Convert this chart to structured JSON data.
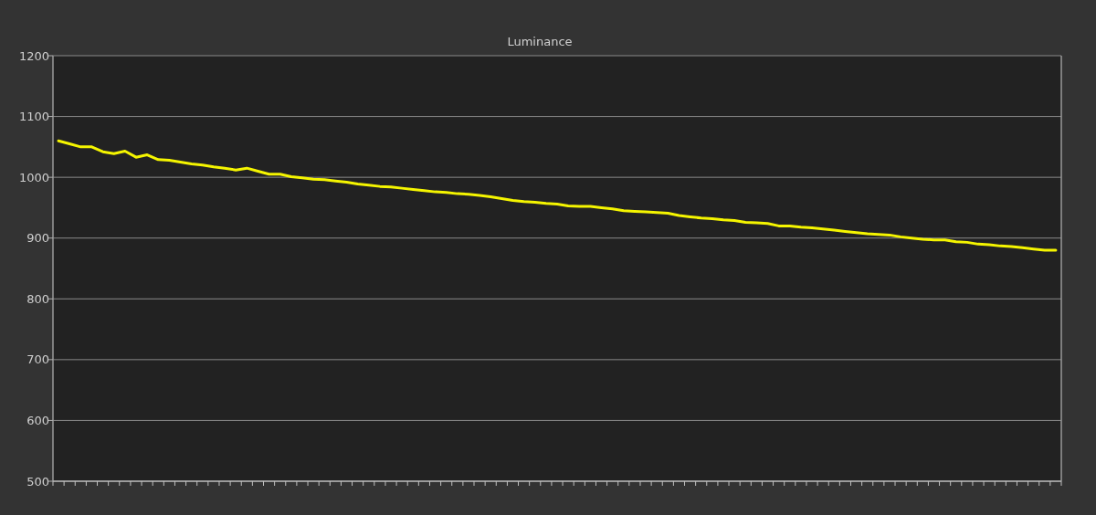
{
  "chart_data": {
    "type": "line",
    "title": "Luminance",
    "categories": [
      null,
      null,
      null,
      null,
      null,
      null,
      null,
      null,
      null,
      null,
      null,
      null,
      null,
      null,
      null,
      null,
      null,
      null,
      null,
      null,
      null,
      null,
      null,
      null,
      null,
      null,
      null,
      null,
      null,
      null,
      null,
      null,
      null,
      null,
      null,
      null,
      null,
      null,
      null,
      null,
      null,
      null,
      null,
      null,
      null,
      null,
      null,
      null,
      null,
      null,
      null,
      null,
      null,
      null,
      null,
      null,
      null,
      null,
      null,
      null,
      null,
      null,
      null,
      null,
      null,
      null,
      null,
      null,
      null,
      null,
      null,
      null,
      null,
      null,
      null,
      null,
      null,
      null,
      null,
      null,
      null,
      null,
      null,
      null,
      null,
      null,
      null,
      null,
      null,
      null,
      null
    ],
    "series": [
      {
        "color": "#f5f500",
        "values": [
          1060,
          1055,
          1050,
          1050,
          1042,
          1039,
          1043,
          1033,
          1037,
          1029,
          1028,
          1025,
          1022,
          1020,
          1017,
          1015,
          1012,
          1015,
          1010,
          1005,
          1005,
          1001,
          999,
          997,
          996,
          994,
          992,
          989,
          987,
          985,
          984,
          982,
          980,
          978,
          976,
          975,
          973,
          972,
          970,
          968,
          965,
          962,
          960,
          959,
          957,
          956,
          953,
          952,
          952,
          950,
          948,
          945,
          944,
          943,
          942,
          941,
          937,
          935,
          933,
          932,
          930,
          929,
          926,
          925,
          924,
          920,
          920,
          918,
          917,
          915,
          913,
          911,
          909,
          907,
          906,
          905,
          902,
          900,
          898,
          897,
          897,
          894,
          893,
          890,
          889,
          887,
          886,
          884,
          882,
          880,
          880
        ]
      }
    ],
    "ylim": [
      500,
      1200
    ],
    "yticks": [
      500,
      600,
      700,
      800,
      900,
      1000,
      1100,
      1200
    ],
    "grid": "y"
  }
}
